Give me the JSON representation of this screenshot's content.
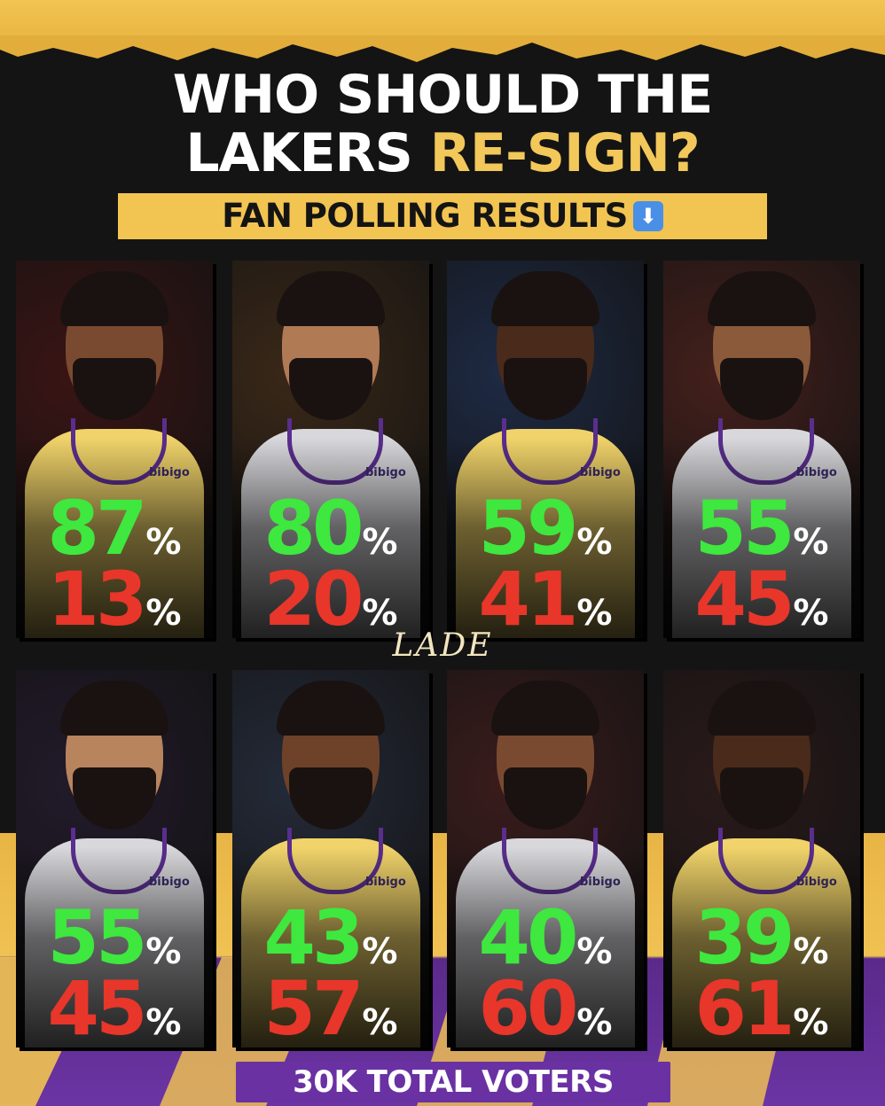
{
  "header": {
    "title_line1": "WHO SHOULD THE",
    "title_line2_white": "LAKERS ",
    "title_line2_gold": "RE-SIGN?",
    "subtitle": "FAN POLLING RESULTS",
    "subtitle_icon": "down-arrow-icon"
  },
  "watermark": "LADE",
  "footer": {
    "total_voters": "30K TOTAL VOTERS"
  },
  "jersey_sponsor": "bibigo",
  "colors": {
    "gold": "#f2c451",
    "purple": "#6a31a3",
    "yes_green": "#3ee83e",
    "no_red": "#e8362a",
    "background": "#141414"
  },
  "players": [
    {
      "yes": "87",
      "no": "13",
      "sym": "%",
      "skin": "#7a4a30",
      "jersey": "#f0d36a",
      "crowd": "#3a1414"
    },
    {
      "yes": "80",
      "no": "20",
      "sym": "%",
      "skin": "#b07a55",
      "jersey": "#d8d8dc",
      "crowd": "#3a2818"
    },
    {
      "yes": "59",
      "no": "41",
      "sym": "%",
      "skin": "#4a2a1a",
      "jersey": "#f0d36a",
      "crowd": "#1e2a44"
    },
    {
      "yes": "55",
      "no": "45",
      "sym": "%",
      "skin": "#8a5a3a",
      "jersey": "#d8d8dc",
      "crowd": "#44201c"
    },
    {
      "yes": "55",
      "no": "45",
      "sym": "%",
      "skin": "#b8845e",
      "jersey": "#d8d8dc",
      "crowd": "#221a2a"
    },
    {
      "yes": "43",
      "no": "57",
      "sym": "%",
      "skin": "#6e4228",
      "jersey": "#f0d36a",
      "crowd": "#242a38"
    },
    {
      "yes": "40",
      "no": "60",
      "sym": "%",
      "skin": "#7a4a30",
      "jersey": "#d8d8dc",
      "crowd": "#3a1c1c"
    },
    {
      "yes": "39",
      "no": "61",
      "sym": "%",
      "skin": "#4a2a1a",
      "jersey": "#f0d36a",
      "crowd": "#2a1a1a"
    }
  ]
}
